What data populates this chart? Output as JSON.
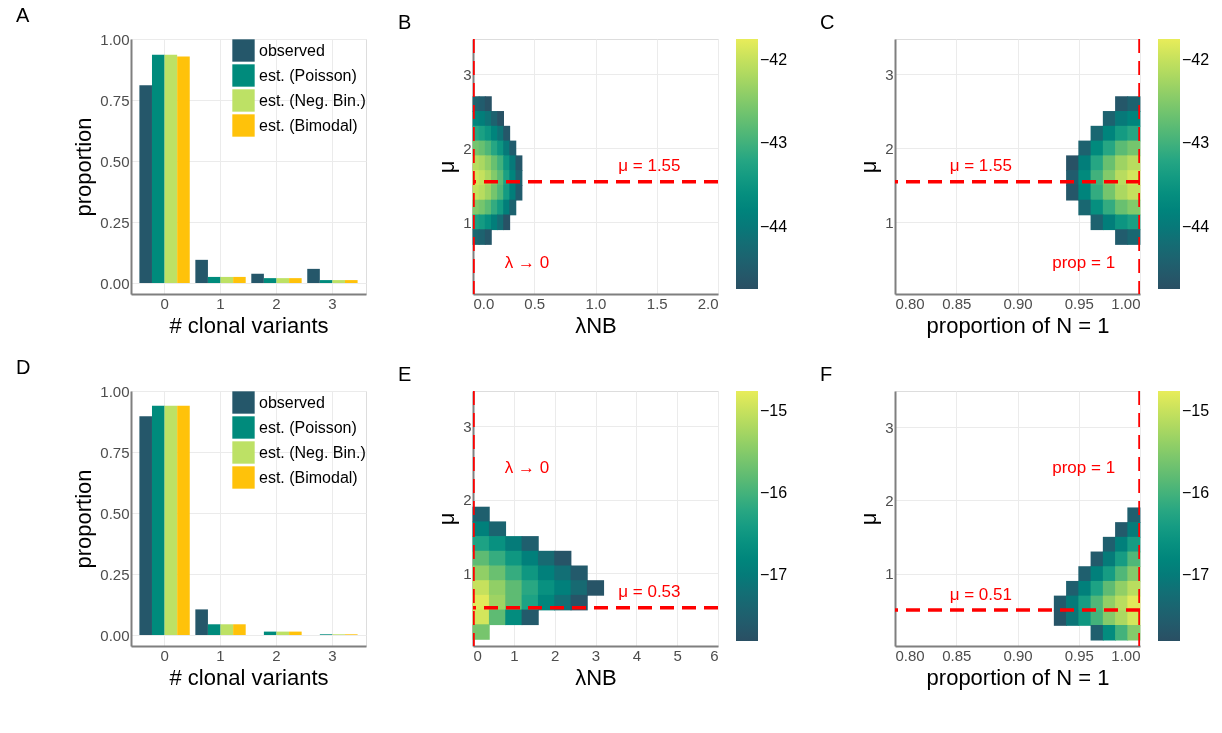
{
  "chart_data": [
    {
      "type": "bar",
      "title": "A",
      "xlabel": "# clonal variants",
      "ylabel": "proportion",
      "categories": [
        "0",
        "1",
        "2",
        "3"
      ],
      "series": [
        {
          "name": "observed",
          "color": "#25576a",
          "values": [
            0.81,
            0.095,
            0.038,
            0.058
          ]
        },
        {
          "name": "est. (Poisson)",
          "color": "#008b7c",
          "values": [
            0.935,
            0.025,
            0.02,
            0.012
          ]
        },
        {
          "name": "est. (Neg. Bin.)",
          "color": "#bde165",
          "values": [
            0.935,
            0.025,
            0.02,
            0.012
          ]
        },
        {
          "name": "est. (Bimodal)",
          "color": "#ffc20a",
          "values": [
            0.928,
            0.025,
            0.02,
            0.012
          ]
        }
      ],
      "ylim": [
        -0.045,
        1.0
      ],
      "yticks": [
        {
          "value": 0,
          "label": "0.00"
        },
        0.25,
        {
          "value": 0.5,
          "label": "0.50"
        },
        0.75,
        {
          "value": 1,
          "label": "1.00"
        }
      ],
      "grid": true,
      "legend": "top right"
    },
    {
      "type": "scatter",
      "title": "B",
      "xlabel": "λNB",
      "ylabel": "μ",
      "marker": "square",
      "x": [
        0.025,
        0.075,
        0.125,
        0.025,
        0.075,
        0.125,
        0.175,
        0.225,
        0.025,
        0.075,
        0.125,
        0.175,
        0.225,
        0.275,
        0.025,
        0.075,
        0.125,
        0.175,
        0.225,
        0.275,
        0.325,
        0.025,
        0.075,
        0.125,
        0.175,
        0.225,
        0.275,
        0.325,
        0.375,
        0.025,
        0.075,
        0.125,
        0.175,
        0.225,
        0.275,
        0.325,
        0.375,
        0.025,
        0.075,
        0.125,
        0.175,
        0.225,
        0.275,
        0.325,
        0.375,
        0.025,
        0.075,
        0.125,
        0.175,
        0.225,
        0.275,
        0.325,
        0.025,
        0.075,
        0.125,
        0.175,
        0.225,
        0.275,
        0.025,
        0.075,
        0.125
      ],
      "values": [
        2.6,
        2.6,
        2.6,
        2.4,
        2.4,
        2.4,
        2.4,
        2.4,
        2.2,
        2.2,
        2.2,
        2.2,
        2.2,
        2.2,
        2.0,
        2.0,
        2.0,
        2.0,
        2.0,
        2.0,
        2.0,
        1.8,
        1.8,
        1.8,
        1.8,
        1.8,
        1.8,
        1.8,
        1.8,
        1.6,
        1.6,
        1.6,
        1.6,
        1.6,
        1.6,
        1.6,
        1.6,
        1.4,
        1.4,
        1.4,
        1.4,
        1.4,
        1.4,
        1.4,
        1.4,
        1.2,
        1.2,
        1.2,
        1.2,
        1.2,
        1.2,
        1.2,
        1.0,
        1.0,
        1.0,
        1.0,
        1.0,
        1.0,
        0.8,
        0.8,
        0.8
      ],
      "cvalues": [
        -44.4,
        -44.5,
        -44.7,
        -43.8,
        -43.9,
        -44.1,
        -44.4,
        -44.7,
        -43.2,
        -43.3,
        -43.5,
        -43.8,
        -44.1,
        -44.6,
        -42.6,
        -42.7,
        -42.9,
        -43.2,
        -43.5,
        -44.0,
        -44.5,
        -42.1,
        -42.2,
        -42.4,
        -42.7,
        -43.0,
        -43.5,
        -44.0,
        -44.6,
        -41.9,
        -42.0,
        -42.2,
        -42.5,
        -42.8,
        -43.3,
        -43.8,
        -44.4,
        -42.0,
        -42.1,
        -42.3,
        -42.6,
        -42.9,
        -43.4,
        -43.9,
        -44.5,
        -42.5,
        -42.6,
        -42.8,
        -43.1,
        -43.4,
        -43.9,
        -44.4,
        -43.3,
        -43.4,
        -43.6,
        -43.9,
        -44.2,
        -44.7,
        -44.3,
        -44.4,
        -44.6
      ],
      "clim": [
        -44.75,
        -41.75
      ],
      "cticks": [
        -44,
        -43,
        -42
      ],
      "xlim": [
        0,
        2
      ],
      "xticks": [
        {
          "value": 0,
          "label": "0.0"
        },
        0.5,
        {
          "value": 1,
          "label": "1.0"
        },
        1.5,
        {
          "value": 2,
          "label": "2.0"
        }
      ],
      "ylim": [
        0.03,
        3.48
      ],
      "yticks": [
        1,
        2,
        3
      ],
      "grid": true,
      "ref_lines": [
        {
          "axis": "x",
          "value": 0,
          "label": "λ → 0",
          "color": "#ff0000",
          "line_style": "dashed"
        },
        {
          "axis": "y",
          "value": 1.55,
          "label": "μ = 1.55",
          "color": "#ff0000",
          "line_style": "dashed"
        }
      ]
    },
    {
      "type": "scatter",
      "title": "C",
      "xlabel": "proportion of N = 1",
      "ylabel": "μ",
      "marker": "square",
      "x": [
        0.985,
        0.995,
        0.975,
        0.985,
        0.995,
        0.965,
        0.975,
        0.985,
        0.995,
        0.955,
        0.965,
        0.975,
        0.985,
        0.995,
        0.945,
        0.955,
        0.965,
        0.975,
        0.985,
        0.995,
        0.945,
        0.955,
        0.965,
        0.975,
        0.985,
        0.995,
        0.945,
        0.955,
        0.965,
        0.975,
        0.985,
        0.995,
        0.955,
        0.965,
        0.975,
        0.985,
        0.995,
        0.965,
        0.975,
        0.985,
        0.995,
        0.985,
        0.995
      ],
      "values": [
        2.6,
        2.6,
        2.4,
        2.4,
        2.4,
        2.2,
        2.2,
        2.2,
        2.2,
        2.0,
        2.0,
        2.0,
        2.0,
        2.0,
        1.8,
        1.8,
        1.8,
        1.8,
        1.8,
        1.8,
        1.6,
        1.6,
        1.6,
        1.6,
        1.6,
        1.6,
        1.4,
        1.4,
        1.4,
        1.4,
        1.4,
        1.4,
        1.2,
        1.2,
        1.2,
        1.2,
        1.2,
        1.0,
        1.0,
        1.0,
        1.0,
        0.8,
        0.8
      ],
      "cvalues": [
        -44.6,
        -44.4,
        -44.4,
        -44.0,
        -43.8,
        -44.3,
        -43.8,
        -43.4,
        -43.2,
        -44.4,
        -43.7,
        -43.2,
        -42.8,
        -42.6,
        -44.7,
        -43.9,
        -43.2,
        -42.7,
        -42.3,
        -42.1,
        -44.5,
        -43.7,
        -43.0,
        -42.5,
        -42.1,
        -41.9,
        -44.6,
        -43.8,
        -43.1,
        -42.6,
        -42.2,
        -42.0,
        -44.3,
        -43.6,
        -43.1,
        -42.7,
        -42.5,
        -44.4,
        -43.9,
        -43.5,
        -43.3,
        -44.5,
        -44.3
      ],
      "clim": [
        -44.75,
        -41.75
      ],
      "cticks": [
        -44,
        -43,
        -42
      ],
      "xlim": [
        0.8,
        1.0
      ],
      "xticks": [
        {
          "value": 0.8,
          "label": "0.80"
        },
        0.85,
        {
          "value": 0.9,
          "label": "0.90"
        },
        0.95,
        {
          "value": 1,
          "label": "1.00"
        }
      ],
      "ylim": [
        0.03,
        3.48
      ],
      "yticks": [
        1,
        2,
        3
      ],
      "grid": true,
      "ref_lines": [
        {
          "axis": "x",
          "value": 1.0,
          "label": "prop = 1",
          "color": "#ff0000",
          "line_style": "dashed"
        },
        {
          "axis": "y",
          "value": 1.55,
          "label": "μ = 1.55",
          "color": "#ff0000",
          "line_style": "dashed"
        }
      ]
    },
    {
      "type": "bar",
      "title": "D",
      "xlabel": "# clonal variants",
      "ylabel": "proportion",
      "categories": [
        "0",
        "1",
        "2",
        "3"
      ],
      "series": [
        {
          "name": "observed",
          "color": "#25576a",
          "values": [
            0.897,
            0.105,
            0,
            0
          ]
        },
        {
          "name": "est. (Poisson)",
          "color": "#008b7c",
          "values": [
            0.94,
            0.044,
            0.014,
            0.003
          ]
        },
        {
          "name": "est. (Neg. Bin.)",
          "color": "#bde165",
          "values": [
            0.94,
            0.044,
            0.014,
            0.003
          ]
        },
        {
          "name": "est. (Bimodal)",
          "color": "#ffc20a",
          "values": [
            0.94,
            0.044,
            0.014,
            0.003
          ]
        }
      ],
      "ylim": [
        -0.045,
        1.0
      ],
      "yticks": [
        {
          "value": 0,
          "label": "0.00"
        },
        0.25,
        {
          "value": 0.5,
          "label": "0.50"
        },
        0.75,
        {
          "value": 1,
          "label": "1.00"
        }
      ],
      "grid": true,
      "legend": "top right"
    },
    {
      "type": "scatter",
      "title": "E",
      "xlabel": "λNB",
      "ylabel": "μ",
      "marker": "square",
      "x": [
        0.2,
        0.2,
        0.6,
        0.2,
        0.6,
        1.0,
        1.4,
        0.2,
        0.6,
        1.0,
        1.4,
        1.8,
        2.2,
        0.2,
        0.6,
        1.0,
        1.4,
        1.8,
        2.2,
        2.6,
        0.2,
        0.6,
        1.0,
        1.4,
        1.8,
        2.2,
        2.6,
        3.0,
        0.2,
        0.6,
        1.0,
        1.4,
        1.8,
        2.2,
        2.6,
        0.2,
        0.6,
        1.0,
        1.4,
        0.2
      ],
      "values": [
        1.8,
        1.6,
        1.6,
        1.4,
        1.4,
        1.4,
        1.4,
        1.2,
        1.2,
        1.2,
        1.2,
        1.2,
        1.2,
        1.0,
        1.0,
        1.0,
        1.0,
        1.0,
        1.0,
        1.0,
        0.8,
        0.8,
        0.8,
        0.8,
        0.8,
        0.8,
        0.8,
        0.8,
        0.6,
        0.6,
        0.6,
        0.6,
        0.6,
        0.6,
        0.6,
        0.4,
        0.4,
        0.4,
        0.4,
        0.2
      ],
      "cvalues": [
        -17.5,
        -16.9,
        -17.4,
        -16.3,
        -16.6,
        -17.0,
        -17.5,
        -15.8,
        -16.1,
        -16.5,
        -16.9,
        -17.3,
        -17.7,
        -15.4,
        -15.7,
        -16.1,
        -16.5,
        -16.9,
        -17.2,
        -17.6,
        -15.0,
        -15.4,
        -15.8,
        -16.2,
        -16.6,
        -16.9,
        -17.3,
        -17.7,
        -14.8,
        -15.3,
        -15.8,
        -16.3,
        -16.8,
        -17.2,
        -17.7,
        -14.9,
        -15.8,
        -16.7,
        -17.6,
        -15.6
      ],
      "clim": [
        -17.8,
        -14.75
      ],
      "cticks": [
        -17,
        -16,
        -15
      ],
      "xlim": [
        0,
        6
      ],
      "xticks": [
        0,
        1,
        2,
        3,
        4,
        5,
        6
      ],
      "ylim": [
        0.01,
        3.48
      ],
      "yticks": [
        1,
        2,
        3
      ],
      "grid": true,
      "ref_lines": [
        {
          "axis": "x",
          "value": 0,
          "label": "λ → 0",
          "color": "#ff0000",
          "line_style": "dashed"
        },
        {
          "axis": "y",
          "value": 0.53,
          "label": "μ = 0.53",
          "color": "#ff0000",
          "line_style": "dashed"
        }
      ]
    },
    {
      "type": "scatter",
      "title": "F",
      "xlabel": "proportion of N = 1",
      "ylabel": "μ",
      "marker": "square",
      "x": [
        0.995,
        0.985,
        0.995,
        0.975,
        0.985,
        0.995,
        0.965,
        0.975,
        0.985,
        0.995,
        0.955,
        0.965,
        0.975,
        0.985,
        0.995,
        0.945,
        0.955,
        0.965,
        0.975,
        0.985,
        0.995,
        0.935,
        0.945,
        0.955,
        0.965,
        0.975,
        0.985,
        0.995,
        0.935,
        0.945,
        0.955,
        0.965,
        0.975,
        0.985,
        0.995,
        0.965,
        0.975,
        0.985,
        0.995
      ],
      "values": [
        1.8,
        1.6,
        1.6,
        1.4,
        1.4,
        1.4,
        1.2,
        1.2,
        1.2,
        1.2,
        1.0,
        1.0,
        1.0,
        1.0,
        1.0,
        0.8,
        0.8,
        0.8,
        0.8,
        0.8,
        0.8,
        0.6,
        0.6,
        0.6,
        0.6,
        0.6,
        0.6,
        0.6,
        0.4,
        0.4,
        0.4,
        0.4,
        0.4,
        0.4,
        0.4,
        0.2,
        0.2,
        0.2,
        0.2
      ],
      "cvalues": [
        -17.5,
        -17.6,
        -17.0,
        -17.5,
        -16.9,
        -16.4,
        -17.6,
        -17.0,
        -16.4,
        -15.9,
        -17.5,
        -16.9,
        -16.4,
        -15.9,
        -15.5,
        -17.5,
        -16.9,
        -16.3,
        -15.8,
        -15.4,
        -15.1,
        -17.6,
        -17.0,
        -16.4,
        -15.9,
        -15.4,
        -15.1,
        -14.8,
        -17.7,
        -17.1,
        -16.5,
        -16.0,
        -15.5,
        -15.2,
        -14.9,
        -17.5,
        -16.7,
        -16.0,
        -15.5
      ],
      "clim": [
        -17.8,
        -14.75
      ],
      "cticks": [
        -17,
        -16,
        -15
      ],
      "xlim": [
        0.8,
        1.0
      ],
      "xticks": [
        {
          "value": 0.8,
          "label": "0.80"
        },
        0.85,
        {
          "value": 0.9,
          "label": "0.90"
        },
        0.95,
        {
          "value": 1,
          "label": "1.00"
        }
      ],
      "ylim": [
        0.02,
        3.49
      ],
      "yticks": [
        1,
        2,
        3
      ],
      "grid": true,
      "ref_lines": [
        {
          "axis": "x",
          "value": 1.0,
          "label": "prop = 1",
          "color": "#ff0000",
          "line_style": "dashed"
        },
        {
          "axis": "y",
          "value": 0.51,
          "label": "μ = 0.51",
          "color": "#ff0000",
          "line_style": "dashed"
        }
      ]
    }
  ]
}
